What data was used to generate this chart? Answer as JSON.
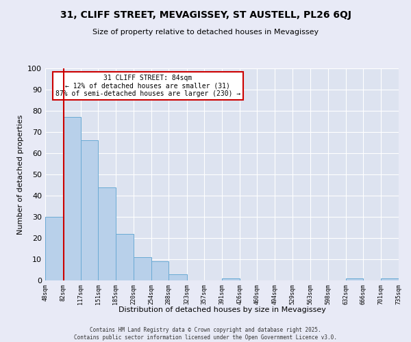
{
  "title": "31, CLIFF STREET, MEVAGISSEY, ST AUSTELL, PL26 6QJ",
  "subtitle": "Size of property relative to detached houses in Mevagissey",
  "xlabel": "Distribution of detached houses by size in Mevagissey",
  "ylabel": "Number of detached properties",
  "bins": [
    48,
    82,
    117,
    151,
    185,
    220,
    254,
    288,
    323,
    357,
    391,
    426,
    460,
    494,
    529,
    563,
    598,
    632,
    666,
    701,
    735
  ],
  "counts": [
    30,
    77,
    66,
    44,
    22,
    11,
    9,
    3,
    0,
    0,
    1,
    0,
    0,
    0,
    0,
    0,
    0,
    1,
    0,
    1
  ],
  "bar_facecolor": "#b8d0ea",
  "bar_edgecolor": "#6aaad4",
  "vline_x": 84,
  "vline_color": "#cc0000",
  "annotation_title": "31 CLIFF STREET: 84sqm",
  "annotation_line1": "← 12% of detached houses are smaller (31)",
  "annotation_line2": "87% of semi-detached houses are larger (230) →",
  "annotation_box_edgecolor": "#cc0000",
  "ylim": [
    0,
    100
  ],
  "yticks": [
    0,
    10,
    20,
    30,
    40,
    50,
    60,
    70,
    80,
    90,
    100
  ],
  "tick_labels": [
    "48sqm",
    "82sqm",
    "117sqm",
    "151sqm",
    "185sqm",
    "220sqm",
    "254sqm",
    "288sqm",
    "323sqm",
    "357sqm",
    "391sqm",
    "426sqm",
    "460sqm",
    "494sqm",
    "529sqm",
    "563sqm",
    "598sqm",
    "632sqm",
    "666sqm",
    "701sqm",
    "735sqm"
  ],
  "footer_line1": "Contains HM Land Registry data © Crown copyright and database right 2025.",
  "footer_line2": "Contains public sector information licensed under the Open Government Licence v3.0.",
  "bg_color": "#e8eaf6",
  "plot_bg_color": "#dde3f0",
  "grid_color": "#ffffff",
  "title_fontsize": 10,
  "subtitle_fontsize": 8,
  "ylabel_fontsize": 8,
  "xlabel_fontsize": 8,
  "ytick_fontsize": 8,
  "xtick_fontsize": 6
}
